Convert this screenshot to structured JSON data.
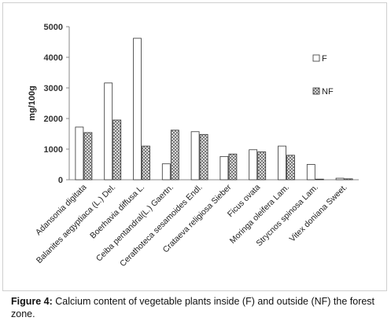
{
  "chart_data": {
    "type": "bar",
    "ylabel": "mg/100g",
    "ylim": [
      0,
      5000
    ],
    "yticks": [
      0,
      1000,
      2000,
      3000,
      4000,
      5000
    ],
    "grid": false,
    "legend_position": "right",
    "categories": [
      "Adansonia digitata",
      "Balanites aegyptiaca (L.) Del.",
      "Boerhavia diffusa L.",
      "Ceiba pentandral(L.) Gaertn.",
      "Cerathoteca sesamoides Endl.",
      "Crataeva religiosa Sieber",
      "Ficus ovata",
      "Moringa oleifera Lam.",
      "Strycnos spinosa Lam.",
      "Vitex doniana Sweet."
    ],
    "series": [
      {
        "name": "F",
        "values": [
          1720,
          3160,
          4620,
          520,
          1570,
          760,
          980,
          1100,
          500,
          50
        ],
        "color": "#ffffff"
      },
      {
        "name": "NF",
        "values": [
          1540,
          1950,
          1100,
          1620,
          1480,
          840,
          910,
          800,
          20,
          30
        ],
        "color": "#a0a0a0"
      }
    ]
  },
  "caption": {
    "label": "Figure 4:",
    "text": " Calcium content of vegetable plants inside (F) and outside (NF) the forest zone."
  }
}
